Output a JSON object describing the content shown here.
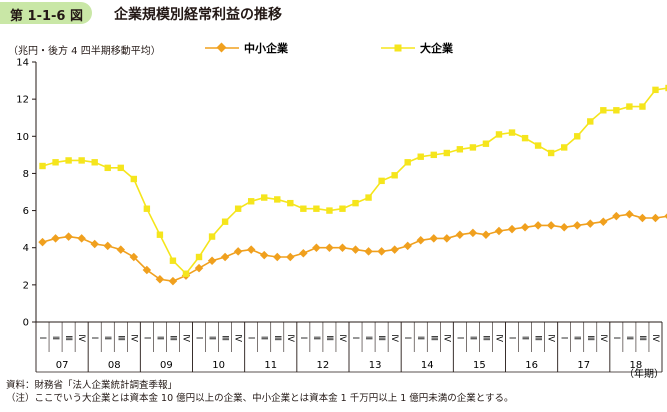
{
  "figure": {
    "number": "第 1-1-6 図",
    "title": "企業規模別経常利益の推移",
    "unit_note": "（兆円・後方 4 四半期移動平均）",
    "source_lines": [
      "資料：財務省「法人企業統計調査季報」",
      "（注）ここでいう大企業とは資本金 10 億円以上の企業、中小企業とは資本金 1 千万円以上 1 億円未満の企業とする。"
    ]
  },
  "colors": {
    "sme": "#f0a01e",
    "large": "#f5e51c",
    "badge": "#c9e7a6",
    "axis": "#231815"
  },
  "chart_data": {
    "type": "line",
    "quarter_labels": [
      "Ⅰ",
      "Ⅱ",
      "Ⅲ",
      "Ⅳ"
    ],
    "years": [
      "07",
      "08",
      "09",
      "10",
      "11",
      "12",
      "13",
      "14",
      "15",
      "16",
      "17",
      "18"
    ],
    "x_unit": "（年期）",
    "ylim": [
      0,
      14
    ],
    "yticks": [
      0,
      2,
      4,
      6,
      8,
      10,
      12,
      14
    ],
    "legend": [
      "中小企業",
      "大企業"
    ],
    "legend_position": "top",
    "series": [
      {
        "name": "中小企業",
        "marker": "diamond",
        "values": [
          4.3,
          4.5,
          4.6,
          4.5,
          4.2,
          4.1,
          3.9,
          3.5,
          2.8,
          2.3,
          2.2,
          2.5,
          2.9,
          3.3,
          3.5,
          3.8,
          3.9,
          3.6,
          3.5,
          3.5,
          3.7,
          4.0,
          4.0,
          4.0,
          3.9,
          3.8,
          3.8,
          3.9,
          4.1,
          4.4,
          4.5,
          4.5,
          4.7,
          4.8,
          4.7,
          4.9,
          5.0,
          5.1,
          5.2,
          5.2,
          5.1,
          5.2,
          5.3,
          5.4,
          5.7,
          5.8,
          5.6,
          5.6,
          5.7,
          5.7,
          5.5
        ],
        "end_label": "5.5"
      },
      {
        "name": "大企業",
        "marker": "square",
        "values": [
          8.4,
          8.6,
          8.7,
          8.7,
          8.6,
          8.3,
          8.3,
          7.7,
          6.1,
          4.7,
          3.3,
          2.6,
          3.5,
          4.6,
          5.4,
          6.1,
          6.5,
          6.7,
          6.6,
          6.4,
          6.1,
          6.1,
          6.0,
          6.1,
          6.4,
          6.7,
          7.6,
          7.9,
          8.6,
          8.9,
          9.0,
          9.1,
          9.3,
          9.4,
          9.6,
          10.1,
          10.2,
          9.9,
          9.5,
          9.1,
          9.4,
          10.0,
          10.8,
          11.4,
          11.4,
          11.6,
          11.6,
          12.5,
          12.6,
          12.5,
          12.4
        ],
        "end_label": "12.4"
      }
    ]
  }
}
